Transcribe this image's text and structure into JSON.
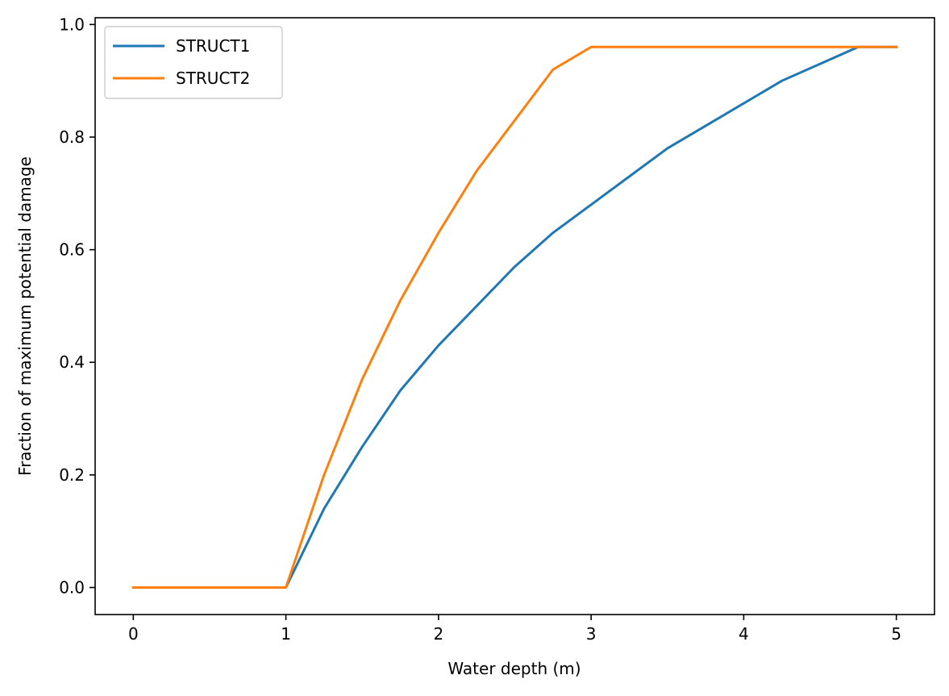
{
  "chart_data": {
    "type": "line",
    "xlabel": "Water depth (m)",
    "ylabel": "Fraction of maximum potential damage",
    "xlim": [
      -0.25,
      5.25
    ],
    "ylim": [
      -0.048,
      1.012
    ],
    "xticks": [
      0,
      1,
      2,
      3,
      4,
      5
    ],
    "xtick_labels": [
      "0",
      "1",
      "2",
      "3",
      "4",
      "5"
    ],
    "yticks": [
      0.0,
      0.2,
      0.4,
      0.6,
      0.8,
      1.0
    ],
    "ytick_labels": [
      "0.0",
      "0.2",
      "0.4",
      "0.6",
      "0.8",
      "1.0"
    ],
    "grid": false,
    "legend_position": "top-left",
    "series": [
      {
        "name": "STRUCT1",
        "color": "#1f77b4",
        "x": [
          0,
          0.25,
          0.5,
          0.75,
          1,
          1.25,
          1.5,
          1.75,
          2,
          2.25,
          2.5,
          2.75,
          3,
          3.25,
          3.5,
          3.75,
          4,
          4.25,
          4.5,
          4.75,
          5
        ],
        "y": [
          0,
          0,
          0,
          0,
          0,
          0.14,
          0.25,
          0.35,
          0.43,
          0.5,
          0.57,
          0.63,
          0.68,
          0.73,
          0.78,
          0.82,
          0.86,
          0.9,
          0.93,
          0.96,
          0.96
        ]
      },
      {
        "name": "STRUCT2",
        "color": "#ff7f0e",
        "x": [
          0,
          0.25,
          0.5,
          0.75,
          1,
          1.25,
          1.5,
          1.75,
          2,
          2.25,
          2.5,
          2.75,
          3,
          3.25,
          3.5,
          3.75,
          4,
          4.25,
          4.5,
          4.75,
          5
        ],
        "y": [
          0,
          0,
          0,
          0,
          0,
          0.2,
          0.37,
          0.51,
          0.63,
          0.74,
          0.83,
          0.92,
          0.96,
          0.96,
          0.96,
          0.96,
          0.96,
          0.96,
          0.96,
          0.96,
          0.96
        ]
      }
    ]
  }
}
